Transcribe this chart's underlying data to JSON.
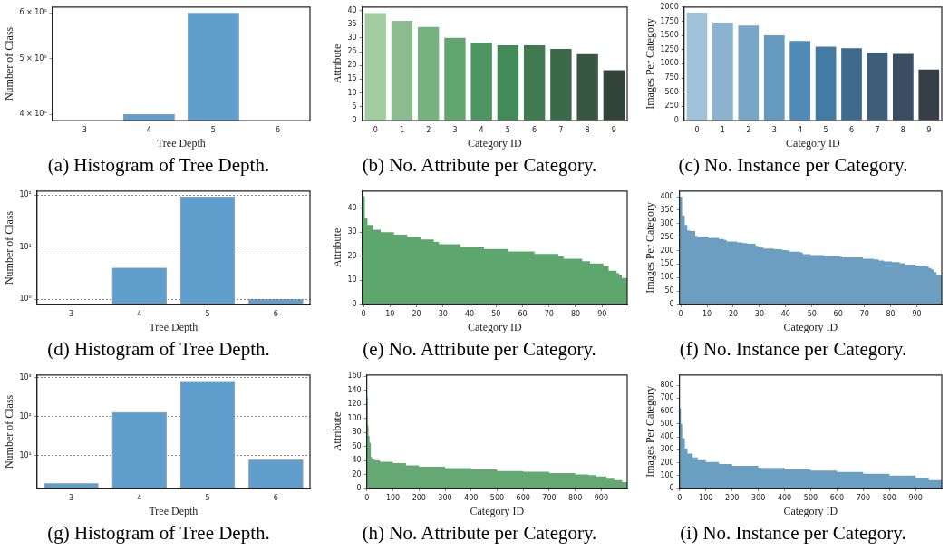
{
  "chart_data": [
    {
      "type": "bar",
      "title": "(a) Histogram of Tree Depth.",
      "xlabel": "Tree Depth",
      "ylabel": "Number of Class",
      "categories": [
        "3",
        "4",
        "5",
        "6"
      ],
      "series": [
        {
          "color": "#5f9ecd",
          "values": [
            null,
            4,
            6,
            null
          ]
        }
      ],
      "log": "y",
      "ylim": [
        3.92,
        6.14
      ],
      "yticks": [
        {
          "value": 4,
          "label": "4 × 10⁰"
        },
        {
          "value": 5,
          "label": "5 × 10⁰"
        },
        {
          "value": 6,
          "label": "6 × 10⁰"
        }
      ]
    },
    {
      "type": "bar",
      "title": "(b) No. Attribute per Category.",
      "xlabel": "Category ID",
      "ylabel": "Attribute",
      "categories": [
        "0",
        "1",
        "2",
        "3",
        "4",
        "5",
        "6",
        "7",
        "8",
        "9"
      ],
      "values": [
        39,
        36.2,
        34,
        30,
        28.2,
        27.3,
        27.3,
        26,
        24.1,
        18.3
      ],
      "colors": [
        "#a1cc9f",
        "#8bbb8f",
        "#76b27f",
        "#61a56f",
        "#4b9660",
        "#428a58",
        "#3f7a51",
        "#3b6a4a",
        "#375742",
        "#33453a"
      ],
      "ylim": [
        0,
        41.2
      ],
      "yticks": [
        0,
        5,
        10,
        15,
        20,
        25,
        30,
        35,
        40
      ]
    },
    {
      "type": "bar",
      "title": "(c) No. Instance per Category.",
      "xlabel": "Category ID",
      "ylabel": "Images Per Category",
      "categories": [
        "0",
        "1",
        "2",
        "3",
        "4",
        "5",
        "6",
        "7",
        "8",
        "9"
      ],
      "values": [
        1900,
        1725,
        1675,
        1500,
        1400,
        1300,
        1275,
        1200,
        1175,
        900
      ],
      "colors": [
        "#a0c2d8",
        "#8ab3cd",
        "#77a6c6",
        "#6599bf",
        "#508ab7",
        "#437ba3",
        "#3e6b8d",
        "#3d5d78",
        "#394e62",
        "#363f47"
      ],
      "ylim": [
        0,
        2000
      ],
      "yticks": [
        0,
        250,
        500,
        750,
        1000,
        1250,
        1500,
        1750,
        2000
      ]
    },
    {
      "type": "bar",
      "title": "(d) Histogram of Tree Depth.",
      "xlabel": "Tree Depth",
      "ylabel": "Number of Class",
      "categories": [
        "3",
        "4",
        "5",
        "6"
      ],
      "series": [
        {
          "color": "#5f9ecd",
          "values": [
            null,
            4,
            94,
            1
          ]
        }
      ],
      "log": "y",
      "ylim": [
        0.79,
        120
      ],
      "yticks": [
        {
          "value": 1,
          "label": "10⁰"
        },
        {
          "value": 10,
          "label": "10¹"
        },
        {
          "value": 100,
          "label": "10²"
        }
      ],
      "grid": "y"
    },
    {
      "type": "area",
      "title": "(e) No. Attribute per Category.",
      "xlabel": "Category ID",
      "ylabel": "Attribute",
      "series": [
        {
          "color": "#5da66e",
          "x": [
            -0.5,
            0.5,
            1.5,
            3.5,
            6.5,
            11.5,
            16.5,
            21.5,
            26.5,
            28.5,
            36.5,
            45.5,
            54.5,
            64.5,
            73.5,
            75.5,
            82.5,
            85.5,
            90.5,
            92.5,
            95.5,
            96.5,
            97.5,
            99.5
          ],
          "values": [
            45,
            36,
            33,
            31,
            30,
            29,
            28,
            27,
            26,
            25,
            24,
            23,
            22,
            21,
            20,
            19,
            18,
            17,
            16,
            14,
            13,
            12,
            11,
            11
          ]
        }
      ],
      "xlim": [
        -0.5,
        99.5
      ],
      "xticks": [
        0,
        10,
        20,
        30,
        40,
        50,
        60,
        70,
        80,
        90
      ],
      "ylim": [
        0,
        47.1
      ],
      "yticks": [
        0,
        10,
        20,
        30,
        40
      ]
    },
    {
      "type": "area",
      "title": "(f) No. Instance per Category.",
      "xlabel": "Category ID",
      "ylabel": "Images Per Category",
      "series": [
        {
          "color": "#6b9ec0",
          "x": [
            -0.5,
            0.5,
            1.5,
            2.5,
            3.5,
            5.5,
            6.5,
            9.5,
            10.5,
            14.5,
            16.5,
            17.5,
            21.5,
            23.5,
            25.5,
            28.5,
            29.5,
            30.5,
            31.5,
            35.5,
            38.5,
            40.5,
            41.5,
            45.5,
            46.5,
            49.5,
            54.5,
            60.5,
            61.5,
            69.5,
            73.5,
            75.5,
            77.5,
            80.5,
            83.5,
            85.5,
            89.5,
            93.5,
            94.5,
            95.5,
            96.5,
            97.5,
            99.5
          ],
          "values": [
            400,
            330,
            295,
            275,
            272,
            255,
            252,
            250,
            247,
            243,
            240,
            234,
            230,
            228,
            225,
            218,
            215,
            212,
            208,
            205,
            202,
            200,
            196,
            193,
            187,
            183,
            180,
            177,
            175,
            170,
            167,
            163,
            160,
            157,
            153,
            148,
            145,
            142,
            135,
            130,
            120,
            110,
            110
          ]
        }
      ],
      "xlim": [
        -0.5,
        99.5
      ],
      "xticks": [
        0,
        10,
        20,
        30,
        40,
        50,
        60,
        70,
        80,
        90
      ],
      "ylim": [
        0,
        421
      ],
      "yticks": [
        0,
        50,
        100,
        150,
        200,
        250,
        300,
        350,
        400
      ]
    },
    {
      "type": "bar",
      "title": "(g) Histogram of Tree Depth.",
      "xlabel": "Tree Depth",
      "ylabel": "Number of Class",
      "categories": [
        "3",
        "4",
        "5",
        "6"
      ],
      "series": [
        {
          "color": "#5f9ecd",
          "values": [
            2,
            130,
            800,
            8
          ]
        }
      ],
      "log": "y",
      "ylim": [
        1.47,
        1150
      ],
      "yticks": [
        {
          "value": 10,
          "label": "10¹"
        },
        {
          "value": 100,
          "label": "10²"
        },
        {
          "value": 1000,
          "label": "10³"
        }
      ],
      "grid": "y"
    },
    {
      "type": "area",
      "title": "(h) No. Attribute per Category.",
      "xlabel": "Category ID",
      "ylabel": "Attribute",
      "series": [
        {
          "color": "#66a874",
          "x": [
            -0.5,
            3,
            6,
            10,
            15,
            20,
            30,
            50,
            100,
            150,
            200,
            300,
            400,
            500,
            600,
            700,
            800,
            850,
            880,
            920,
            950,
            980,
            999.5
          ],
          "values": [
            130,
            90,
            75,
            65,
            45,
            42,
            40,
            38,
            36,
            33,
            31,
            29,
            27,
            25,
            24,
            22,
            20,
            19,
            17,
            14,
            12,
            9,
            9
          ]
        }
      ],
      "xlim": [
        -0.5,
        999.5
      ],
      "xticks": [
        0,
        100,
        200,
        300,
        400,
        500,
        600,
        700,
        800,
        900
      ],
      "ylim": [
        0,
        161.6
      ],
      "yticks": [
        0,
        20,
        40,
        60,
        80,
        100,
        120,
        140,
        160
      ]
    },
    {
      "type": "area",
      "title": "(i) No. Instance per Category.",
      "xlabel": "Category ID",
      "ylabel": "Images Per Category",
      "series": [
        {
          "color": "#6a9fc2",
          "x": [
            -0.5,
            5,
            10,
            20,
            30,
            50,
            70,
            100,
            150,
            200,
            300,
            400,
            500,
            600,
            700,
            800,
            900,
            950,
            999.5
          ],
          "values": [
            620,
            500,
            390,
            310,
            270,
            240,
            220,
            205,
            190,
            175,
            160,
            148,
            138,
            128,
            115,
            100,
            80,
            65,
            60
          ]
        }
      ],
      "xlim": [
        -0.5,
        999.5
      ],
      "xticks": [
        0,
        100,
        200,
        300,
        400,
        500,
        600,
        700,
        800,
        900
      ],
      "ylim": [
        0,
        880
      ],
      "yticks": [
        0,
        100,
        200,
        300,
        400,
        500,
        600,
        700,
        800
      ]
    }
  ]
}
